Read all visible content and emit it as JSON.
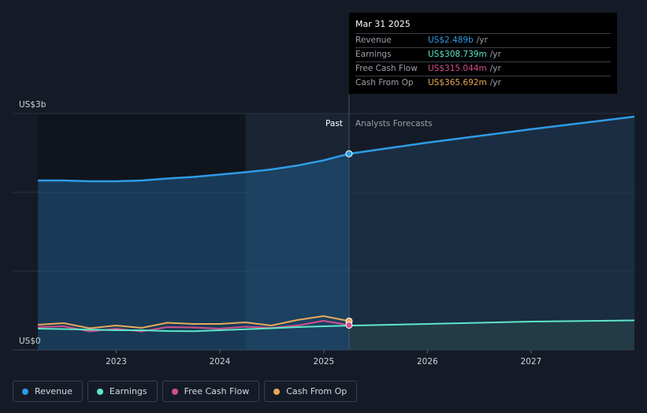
{
  "chart_data": {
    "type": "area",
    "y_axis": {
      "top_label": "US$3b",
      "bottom_label": "US$0",
      "ylim": [
        0,
        3000
      ]
    },
    "x_axis": {
      "ticks": [
        "2023",
        "2024",
        "2025",
        "2026",
        "2027"
      ],
      "range": [
        "2022-03-31",
        "2027-12-31"
      ]
    },
    "past_label": "Past",
    "forecast_label": "Analysts Forecasts",
    "divider_date": "2025-03-31",
    "series": [
      {
        "name": "Revenue",
        "color": "#2f9be6",
        "x": [
          "2022-03-31",
          "2022-06-30",
          "2022-09-30",
          "2022-12-31",
          "2023-03-31",
          "2023-06-30",
          "2023-09-30",
          "2023-12-31",
          "2024-03-31",
          "2024-06-30",
          "2024-09-30",
          "2024-12-31",
          "2025-03-31"
        ],
        "y": [
          2150,
          2150,
          2140,
          2140,
          2150,
          2175,
          2195,
          2225,
          2255,
          2290,
          2340,
          2405,
          2489
        ],
        "forecast": {
          "x": [
            "2025-03-31",
            "2025-12-31",
            "2026-12-31",
            "2027-12-31"
          ],
          "y": [
            2489,
            2630,
            2800,
            2960
          ]
        }
      },
      {
        "name": "Earnings",
        "color": "#5ee6c8",
        "x": [
          "2022-03-31",
          "2022-06-30",
          "2022-09-30",
          "2022-12-31",
          "2023-03-31",
          "2023-06-30",
          "2023-09-30",
          "2023-12-31",
          "2024-03-31",
          "2024-06-30",
          "2024-09-30",
          "2024-12-31",
          "2025-03-31"
        ],
        "y": [
          270,
          265,
          258,
          250,
          250,
          240,
          238,
          250,
          262,
          275,
          290,
          300,
          308.739
        ],
        "forecast": {
          "x": [
            "2025-03-31",
            "2025-12-31",
            "2026-12-31",
            "2027-12-31"
          ],
          "y": [
            308.739,
            330,
            360,
            375
          ]
        }
      },
      {
        "name": "Free Cash Flow",
        "color": "#d04f8d",
        "x": [
          "2022-03-31",
          "2022-06-30",
          "2022-09-30",
          "2022-12-31",
          "2023-03-31",
          "2023-06-30",
          "2023-09-30",
          "2023-12-31",
          "2024-03-31",
          "2024-06-30",
          "2024-09-30",
          "2024-12-31",
          "2025-03-31"
        ],
        "y": [
          290,
          300,
          235,
          270,
          235,
          290,
          285,
          270,
          295,
          280,
          310,
          370,
          315.044
        ]
      },
      {
        "name": "Cash From Op",
        "color": "#e8a85a",
        "x": [
          "2022-03-31",
          "2022-06-30",
          "2022-09-30",
          "2022-12-31",
          "2023-03-31",
          "2023-06-30",
          "2023-09-30",
          "2023-12-31",
          "2024-03-31",
          "2024-06-30",
          "2024-09-30",
          "2024-12-31",
          "2025-03-31"
        ],
        "y": [
          320,
          340,
          275,
          310,
          280,
          345,
          330,
          330,
          350,
          310,
          380,
          430,
          365.692
        ]
      }
    ],
    "legend_placement": "bottom-left",
    "grid": true
  },
  "tooltip": {
    "date": "Mar 31 2025",
    "rows": [
      {
        "label": "Revenue",
        "value": "US$2.489b",
        "unit": "/yr",
        "color": "#2f9be6"
      },
      {
        "label": "Earnings",
        "value": "US$308.739m",
        "unit": "/yr",
        "color": "#5ee6c8"
      },
      {
        "label": "Free Cash Flow",
        "value": "US$315.044m",
        "unit": "/yr",
        "color": "#d04f8d"
      },
      {
        "label": "Cash From Op",
        "value": "US$365.692m",
        "unit": "/yr",
        "color": "#e8a85a"
      }
    ]
  },
  "legend": [
    {
      "label": "Revenue",
      "color": "#2f9be6"
    },
    {
      "label": "Earnings",
      "color": "#5ee6c8"
    },
    {
      "label": "Free Cash Flow",
      "color": "#d04f8d"
    },
    {
      "label": "Cash From Op",
      "color": "#e8a85a"
    }
  ]
}
